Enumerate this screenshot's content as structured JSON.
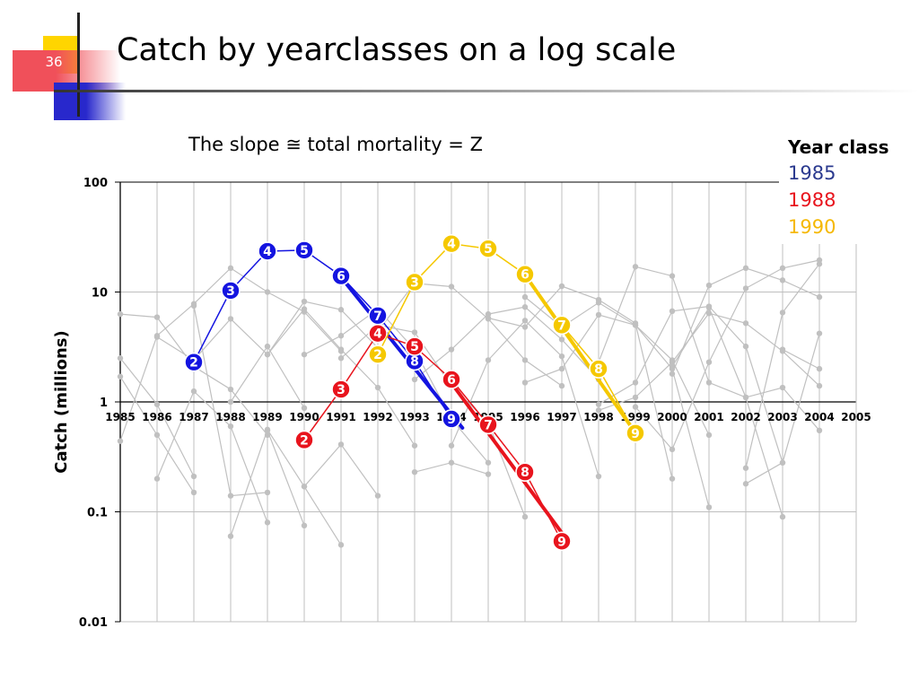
{
  "slide": {
    "number": "36",
    "title": "Catch by yearclasses on a log scale"
  },
  "subtitle": "The slope ≅ total mortality = Z",
  "legend": {
    "title": "Year class",
    "items": [
      {
        "label": "1985",
        "color": "#2b3a8f"
      },
      {
        "label": "1988",
        "color": "#e8141d"
      },
      {
        "label": "1990",
        "color": "#f5b800"
      }
    ]
  },
  "colors": {
    "deco_yellow": "#ffd500",
    "deco_blue": "#2828cc",
    "deco_red": "#f0505a",
    "grid": "#bfbfbf",
    "background_series": "#c0c0c0"
  },
  "chart_data": {
    "type": "line",
    "title": "",
    "ylabel": "Catch (millions)",
    "xlabel": "",
    "yscale": "log",
    "ylim": [
      0.01,
      100
    ],
    "yticks": [
      "100",
      "10",
      "1",
      "0.1",
      "0.01"
    ],
    "categories": [
      "1985",
      "1986",
      "1987",
      "1988",
      "1989",
      "1990",
      "1991",
      "1992",
      "1993",
      "1994",
      "1995",
      "1996",
      "1997",
      "1998",
      "1999",
      "2000",
      "2001",
      "2002",
      "2003",
      "2004",
      "2005"
    ],
    "xlim": [
      1985,
      2005
    ],
    "grid": true,
    "legend_position": "top-right",
    "series": [
      {
        "name": "1985",
        "color": "#1414e0",
        "points": [
          {
            "x": 1987,
            "y": 2.3,
            "age": "2"
          },
          {
            "x": 1988,
            "y": 10.3,
            "age": "3"
          },
          {
            "x": 1989,
            "y": 23.5,
            "age": "4"
          },
          {
            "x": 1990,
            "y": 24.0,
            "age": "5"
          },
          {
            "x": 1991,
            "y": 14.0,
            "age": "6"
          },
          {
            "x": 1992,
            "y": 6.1,
            "age": "7"
          },
          {
            "x": 1993,
            "y": 2.35,
            "age": "8"
          },
          {
            "x": 1994,
            "y": 0.7,
            "age": "9"
          }
        ],
        "fit": [
          {
            "x": 1990.9,
            "y": 15.0
          },
          {
            "x": 1994.3,
            "y": 0.58
          }
        ]
      },
      {
        "name": "1988",
        "color": "#e8141d",
        "points": [
          {
            "x": 1990,
            "y": 0.45,
            "age": "2"
          },
          {
            "x": 1991,
            "y": 1.3,
            "age": "3"
          },
          {
            "x": 1992,
            "y": 4.2,
            "age": "4"
          },
          {
            "x": 1993,
            "y": 3.2,
            "age": "5"
          },
          {
            "x": 1994,
            "y": 1.6,
            "age": "6"
          },
          {
            "x": 1995,
            "y": 0.62,
            "age": "7"
          },
          {
            "x": 1996,
            "y": 0.23,
            "age": "8"
          },
          {
            "x": 1997,
            "y": 0.054,
            "age": "9"
          }
        ],
        "fit": [
          {
            "x": 1993.9,
            "y": 1.65
          },
          {
            "x": 1997.1,
            "y": 0.058
          }
        ]
      },
      {
        "name": "1990",
        "color": "#f5c800",
        "points": [
          {
            "x": 1992,
            "y": 2.7,
            "age": "2"
          },
          {
            "x": 1993,
            "y": 12.3,
            "age": "3"
          },
          {
            "x": 1994,
            "y": 27.5,
            "age": "4"
          },
          {
            "x": 1995,
            "y": 24.8,
            "age": "5"
          },
          {
            "x": 1996,
            "y": 14.5,
            "age": "6"
          },
          {
            "x": 1997,
            "y": 5.0,
            "age": "7"
          },
          {
            "x": 1998,
            "y": 2.0,
            "age": "8"
          },
          {
            "x": 1999,
            "y": 0.52,
            "age": "9"
          }
        ],
        "fit": [
          {
            "x": 1995.9,
            "y": 16.0
          },
          {
            "x": 1999.1,
            "y": 0.47
          }
        ]
      }
    ],
    "background_series": [
      [
        [
          1985,
          6.3
        ],
        [
          1986,
          5.9
        ],
        [
          1987,
          2.1
        ],
        [
          1988,
          1.3
        ],
        [
          1989,
          0.5
        ]
      ],
      [
        [
          1985,
          2.5
        ],
        [
          1986,
          0.95
        ],
        [
          1987,
          0.21
        ]
      ],
      [
        [
          1985,
          0.44
        ],
        [
          1986,
          4.0
        ],
        [
          1987,
          7.8
        ],
        [
          1988,
          16.5
        ],
        [
          1989,
          10.0
        ],
        [
          1990,
          6.6
        ],
        [
          1991,
          2.9
        ]
      ],
      [
        [
          1985,
          1.7
        ],
        [
          1986,
          0.5
        ],
        [
          1987,
          0.15
        ]
      ],
      [
        [
          1986,
          0.2
        ],
        [
          1987,
          1.25
        ],
        [
          1988,
          0.6
        ],
        [
          1989,
          0.08
        ]
      ],
      [
        [
          1986,
          3.9
        ],
        [
          1987,
          2.4
        ],
        [
          1988,
          5.7
        ],
        [
          1989,
          2.7
        ],
        [
          1990,
          8.2
        ],
        [
          1991,
          6.9
        ],
        [
          1992,
          3.1
        ]
      ],
      [
        [
          1987,
          7.5
        ],
        [
          1988,
          0.14
        ],
        [
          1989,
          0.15
        ]
      ],
      [
        [
          1988,
          1.0
        ],
        [
          1989,
          3.2
        ],
        [
          1990,
          0.88
        ]
      ],
      [
        [
          1988,
          0.06
        ],
        [
          1989,
          0.56
        ],
        [
          1990,
          0.17
        ],
        [
          1991,
          0.05
        ]
      ],
      [
        [
          1989,
          0.55
        ],
        [
          1990,
          0.075
        ]
      ],
      [
        [
          1989,
          2.7
        ],
        [
          1990,
          7.0
        ],
        [
          1991,
          3.0
        ],
        [
          1992,
          1.35
        ],
        [
          1993,
          0.4
        ]
      ],
      [
        [
          1990,
          2.7
        ],
        [
          1991,
          4.0
        ],
        [
          1992,
          7.0
        ],
        [
          1993,
          3.0
        ],
        [
          1994,
          0.7
        ],
        [
          1995,
          0.28
        ]
      ],
      [
        [
          1990,
          0.17
        ],
        [
          1991,
          0.41
        ],
        [
          1992,
          0.14
        ]
      ],
      [
        [
          1991,
          2.5
        ],
        [
          1992,
          5.0
        ],
        [
          1993,
          4.3
        ],
        [
          1994,
          1.4
        ],
        [
          1995,
          0.65
        ],
        [
          1996,
          0.09
        ]
      ],
      [
        [
          1992,
          4.4
        ],
        [
          1993,
          12.0
        ],
        [
          1994,
          11.2
        ],
        [
          1995,
          5.7
        ],
        [
          1996,
          2.4
        ],
        [
          1997,
          1.4
        ]
      ],
      [
        [
          1993,
          0.23
        ],
        [
          1994,
          0.28
        ],
        [
          1995,
          0.22
        ]
      ],
      [
        [
          1993,
          1.6
        ],
        [
          1994,
          3.0
        ],
        [
          1995,
          6.3
        ],
        [
          1996,
          7.3
        ],
        [
          1997,
          3.7
        ],
        [
          1998,
          1.6
        ]
      ],
      [
        [
          1994,
          0.4
        ],
        [
          1995,
          2.4
        ],
        [
          1996,
          5.5
        ],
        [
          1997,
          2.6
        ],
        [
          1998,
          0.21
        ]
      ],
      [
        [
          1995,
          5.8
        ],
        [
          1996,
          4.8
        ],
        [
          1997,
          11.3
        ],
        [
          1998,
          8.5
        ],
        [
          1999,
          5.2
        ],
        [
          2000,
          0.2
        ]
      ],
      [
        [
          1996,
          1.5
        ],
        [
          1997,
          2.0
        ],
        [
          1998,
          6.2
        ],
        [
          1999,
          5.0
        ],
        [
          2000,
          2.4
        ],
        [
          2001,
          0.5
        ]
      ],
      [
        [
          1996,
          9.0
        ],
        [
          1997,
          4.8
        ],
        [
          1998,
          8.0
        ],
        [
          1999,
          5.0
        ],
        [
          2000,
          2.0
        ],
        [
          2001,
          0.11
        ]
      ],
      [
        [
          1998,
          0.95
        ],
        [
          1999,
          1.5
        ],
        [
          2000,
          6.7
        ],
        [
          2001,
          7.4
        ],
        [
          2002,
          3.2
        ],
        [
          2003,
          0.28
        ]
      ],
      [
        [
          1998,
          0.84
        ],
        [
          1999,
          1.1
        ],
        [
          2000,
          2.3
        ],
        [
          2001,
          6.4
        ],
        [
          2002,
          5.2
        ],
        [
          2003,
          2.9
        ],
        [
          2004,
          1.4
        ]
      ],
      [
        [
          1998,
          2.3
        ],
        [
          1999,
          17.0
        ],
        [
          2000,
          14.0
        ],
        [
          2001,
          1.5
        ],
        [
          2002,
          1.1
        ],
        [
          2003,
          0.09
        ]
      ],
      [
        [
          1999,
          0.9
        ],
        [
          2000,
          0.37
        ],
        [
          2001,
          2.3
        ],
        [
          2002,
          10.8
        ],
        [
          2003,
          16.5
        ],
        [
          2004,
          19.5
        ]
      ],
      [
        [
          2000,
          1.8
        ],
        [
          2001,
          11.5
        ],
        [
          2002,
          16.5
        ],
        [
          2003,
          12.8
        ],
        [
          2004,
          9.0
        ]
      ],
      [
        [
          2000,
          2.1
        ],
        [
          2001,
          7.2
        ],
        [
          2002,
          1.1
        ],
        [
          2003,
          1.35
        ],
        [
          2004,
          0.55
        ]
      ],
      [
        [
          2002,
          0.25
        ],
        [
          2003,
          6.5
        ],
        [
          2004,
          18.0
        ]
      ],
      [
        [
          2002,
          0.18
        ],
        [
          2003,
          0.28
        ],
        [
          2004,
          4.2
        ]
      ],
      [
        [
          2003,
          3.0
        ],
        [
          2004,
          2.0
        ]
      ]
    ]
  }
}
